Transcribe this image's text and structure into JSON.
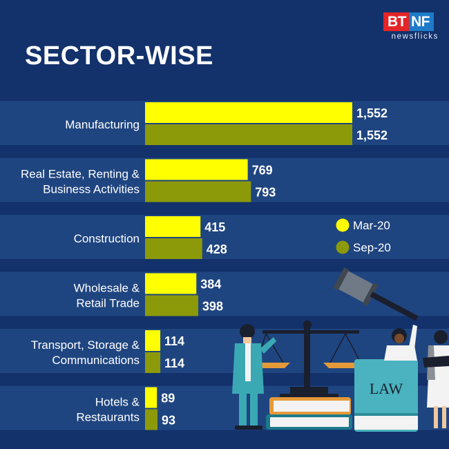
{
  "header": {
    "title": "SECTOR-WISE"
  },
  "brand": {
    "logo_left": "BT",
    "logo_right": "NF",
    "logo_sub": "newsflicks"
  },
  "colors": {
    "background": "#13316b",
    "row_band": "#1f4580",
    "series1": "#ffff00",
    "series2": "#8c9a0a",
    "text": "#ffffff"
  },
  "chart_data": {
    "type": "bar",
    "orientation": "horizontal",
    "title": "SECTOR-WISE",
    "categories": [
      [
        "Manufacturing"
      ],
      [
        "Real Estate, Renting &",
        "Business Activities"
      ],
      [
        "Construction"
      ],
      [
        "Wholesale &",
        "Retail Trade"
      ],
      [
        "Transport, Storage &",
        "Communications"
      ],
      [
        "Hotels &",
        "Restaurants"
      ]
    ],
    "series": [
      {
        "name": "Mar-20",
        "values": [
          1552,
          769,
          415,
          384,
          114,
          89
        ],
        "labels": [
          "1,552",
          "769",
          "415",
          "384",
          "114",
          "89"
        ]
      },
      {
        "name": "Sep-20",
        "values": [
          1552,
          793,
          428,
          398,
          114,
          93
        ],
        "labels": [
          "1,552",
          "793",
          "428",
          "398",
          "114",
          "93"
        ]
      }
    ],
    "xlim": [
      0,
      1600
    ],
    "xlabel": "",
    "ylabel": "",
    "grid": false,
    "legend": "right, beside Construction"
  },
  "illustration": {
    "book_label": "LAW"
  }
}
